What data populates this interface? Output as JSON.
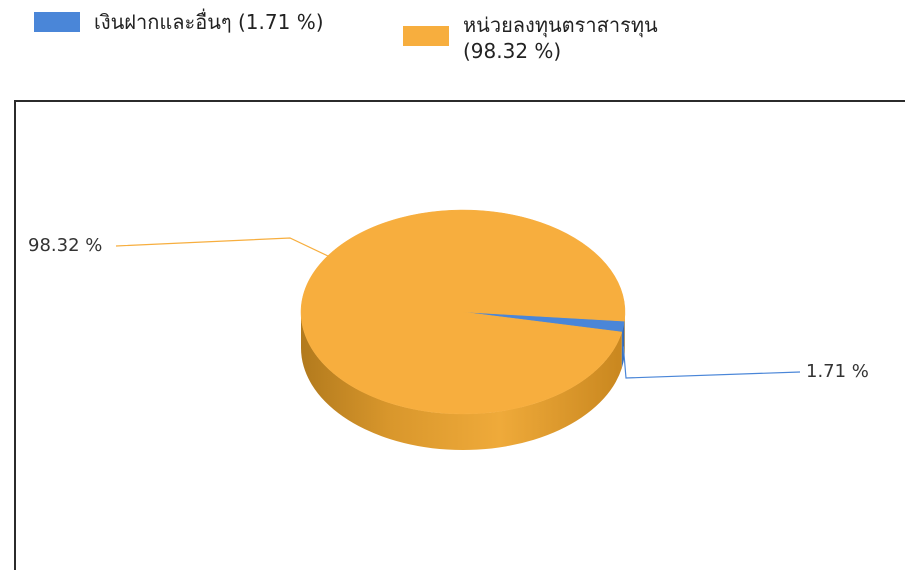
{
  "chart_data": {
    "type": "pie",
    "title": "",
    "style": "3d",
    "legend_position": "top",
    "slices": [
      {
        "label": "เงินฝากและอื่นๆ (1.71 %)",
        "value": 1.71,
        "data_label": "1.71 %",
        "color": "#4a86d8"
      },
      {
        "label": "หน่วยลงทุนตราสารทุน\n(98.32 %)",
        "value": 98.32,
        "data_label": "98.32 %",
        "color": "#f7ae3e"
      }
    ]
  }
}
